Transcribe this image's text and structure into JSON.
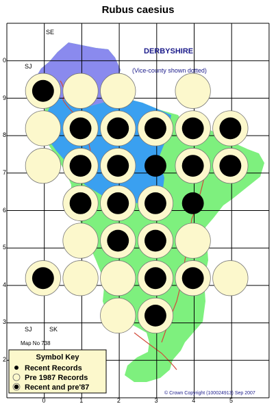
{
  "title": "Rubus caesius",
  "region": {
    "name": "DERBYSHIRE",
    "note": "(Vice-county shown dotted)"
  },
  "map_number": "Map No 738",
  "copyright": "© Crown Copyright (100024913) Sep 2007",
  "grid_squares": [
    {
      "code": "SE"
    },
    {
      "code": "SJ"
    },
    {
      "code": "SJ"
    },
    {
      "code": "SK"
    }
  ],
  "x_ticks": [
    "0",
    "1",
    "2",
    "3",
    "4",
    "5"
  ],
  "y_ticks": [
    "0",
    "9",
    "8",
    "7",
    "6",
    "5",
    "4",
    "3",
    "2"
  ],
  "legend": {
    "title": "Symbol Key",
    "items": [
      {
        "label": "Recent Records",
        "symbol": "recent"
      },
      {
        "label": "Pre 1987 Records",
        "symbol": "pre1987"
      },
      {
        "label": "Recent and pre'87",
        "symbol": "both"
      }
    ]
  },
  "colors": {
    "pre1987": "#fcf8cc",
    "recent": "#000000",
    "grid": "#000000",
    "upland": "#8a8aee",
    "mid": "#3aa0f0",
    "lowland": "#7ef07e",
    "legend_bg": "#fcf8cc"
  },
  "records": [
    {
      "col": 0,
      "row": 0,
      "status": "both"
    },
    {
      "col": 1,
      "row": 0,
      "status": "pre1987"
    },
    {
      "col": 2,
      "row": 0,
      "status": "pre1987"
    },
    {
      "col": 4,
      "row": 0,
      "status": "pre1987"
    },
    {
      "col": 0,
      "row": 1,
      "status": "pre1987"
    },
    {
      "col": 1,
      "row": 1,
      "status": "both"
    },
    {
      "col": 2,
      "row": 1,
      "status": "both"
    },
    {
      "col": 3,
      "row": 1,
      "status": "both"
    },
    {
      "col": 4,
      "row": 1,
      "status": "both"
    },
    {
      "col": 5,
      "row": 1,
      "status": "both"
    },
    {
      "col": 0,
      "row": 2,
      "status": "pre1987"
    },
    {
      "col": 1,
      "row": 2,
      "status": "both"
    },
    {
      "col": 2,
      "row": 2,
      "status": "both"
    },
    {
      "col": 3,
      "row": 2,
      "status": "recent"
    },
    {
      "col": 4,
      "row": 2,
      "status": "both"
    },
    {
      "col": 5,
      "row": 2,
      "status": "both"
    },
    {
      "col": 1,
      "row": 3,
      "status": "both"
    },
    {
      "col": 2,
      "row": 3,
      "status": "both"
    },
    {
      "col": 3,
      "row": 3,
      "status": "both"
    },
    {
      "col": 4,
      "row": 3,
      "status": "recent"
    },
    {
      "col": 1,
      "row": 4,
      "status": "pre1987"
    },
    {
      "col": 2,
      "row": 4,
      "status": "both"
    },
    {
      "col": 3,
      "row": 4,
      "status": "both"
    },
    {
      "col": 4,
      "row": 4,
      "status": "pre1987"
    },
    {
      "col": 0,
      "row": 5,
      "status": "both"
    },
    {
      "col": 1,
      "row": 5,
      "status": "pre1987"
    },
    {
      "col": 2,
      "row": 5,
      "status": "pre1987"
    },
    {
      "col": 3,
      "row": 5,
      "status": "both"
    },
    {
      "col": 4,
      "row": 5,
      "status": "both"
    },
    {
      "col": 5,
      "row": 5,
      "status": "pre1987"
    },
    {
      "col": 2,
      "row": 6,
      "status": "pre1987"
    },
    {
      "col": 3,
      "row": 6,
      "status": "both"
    }
  ]
}
